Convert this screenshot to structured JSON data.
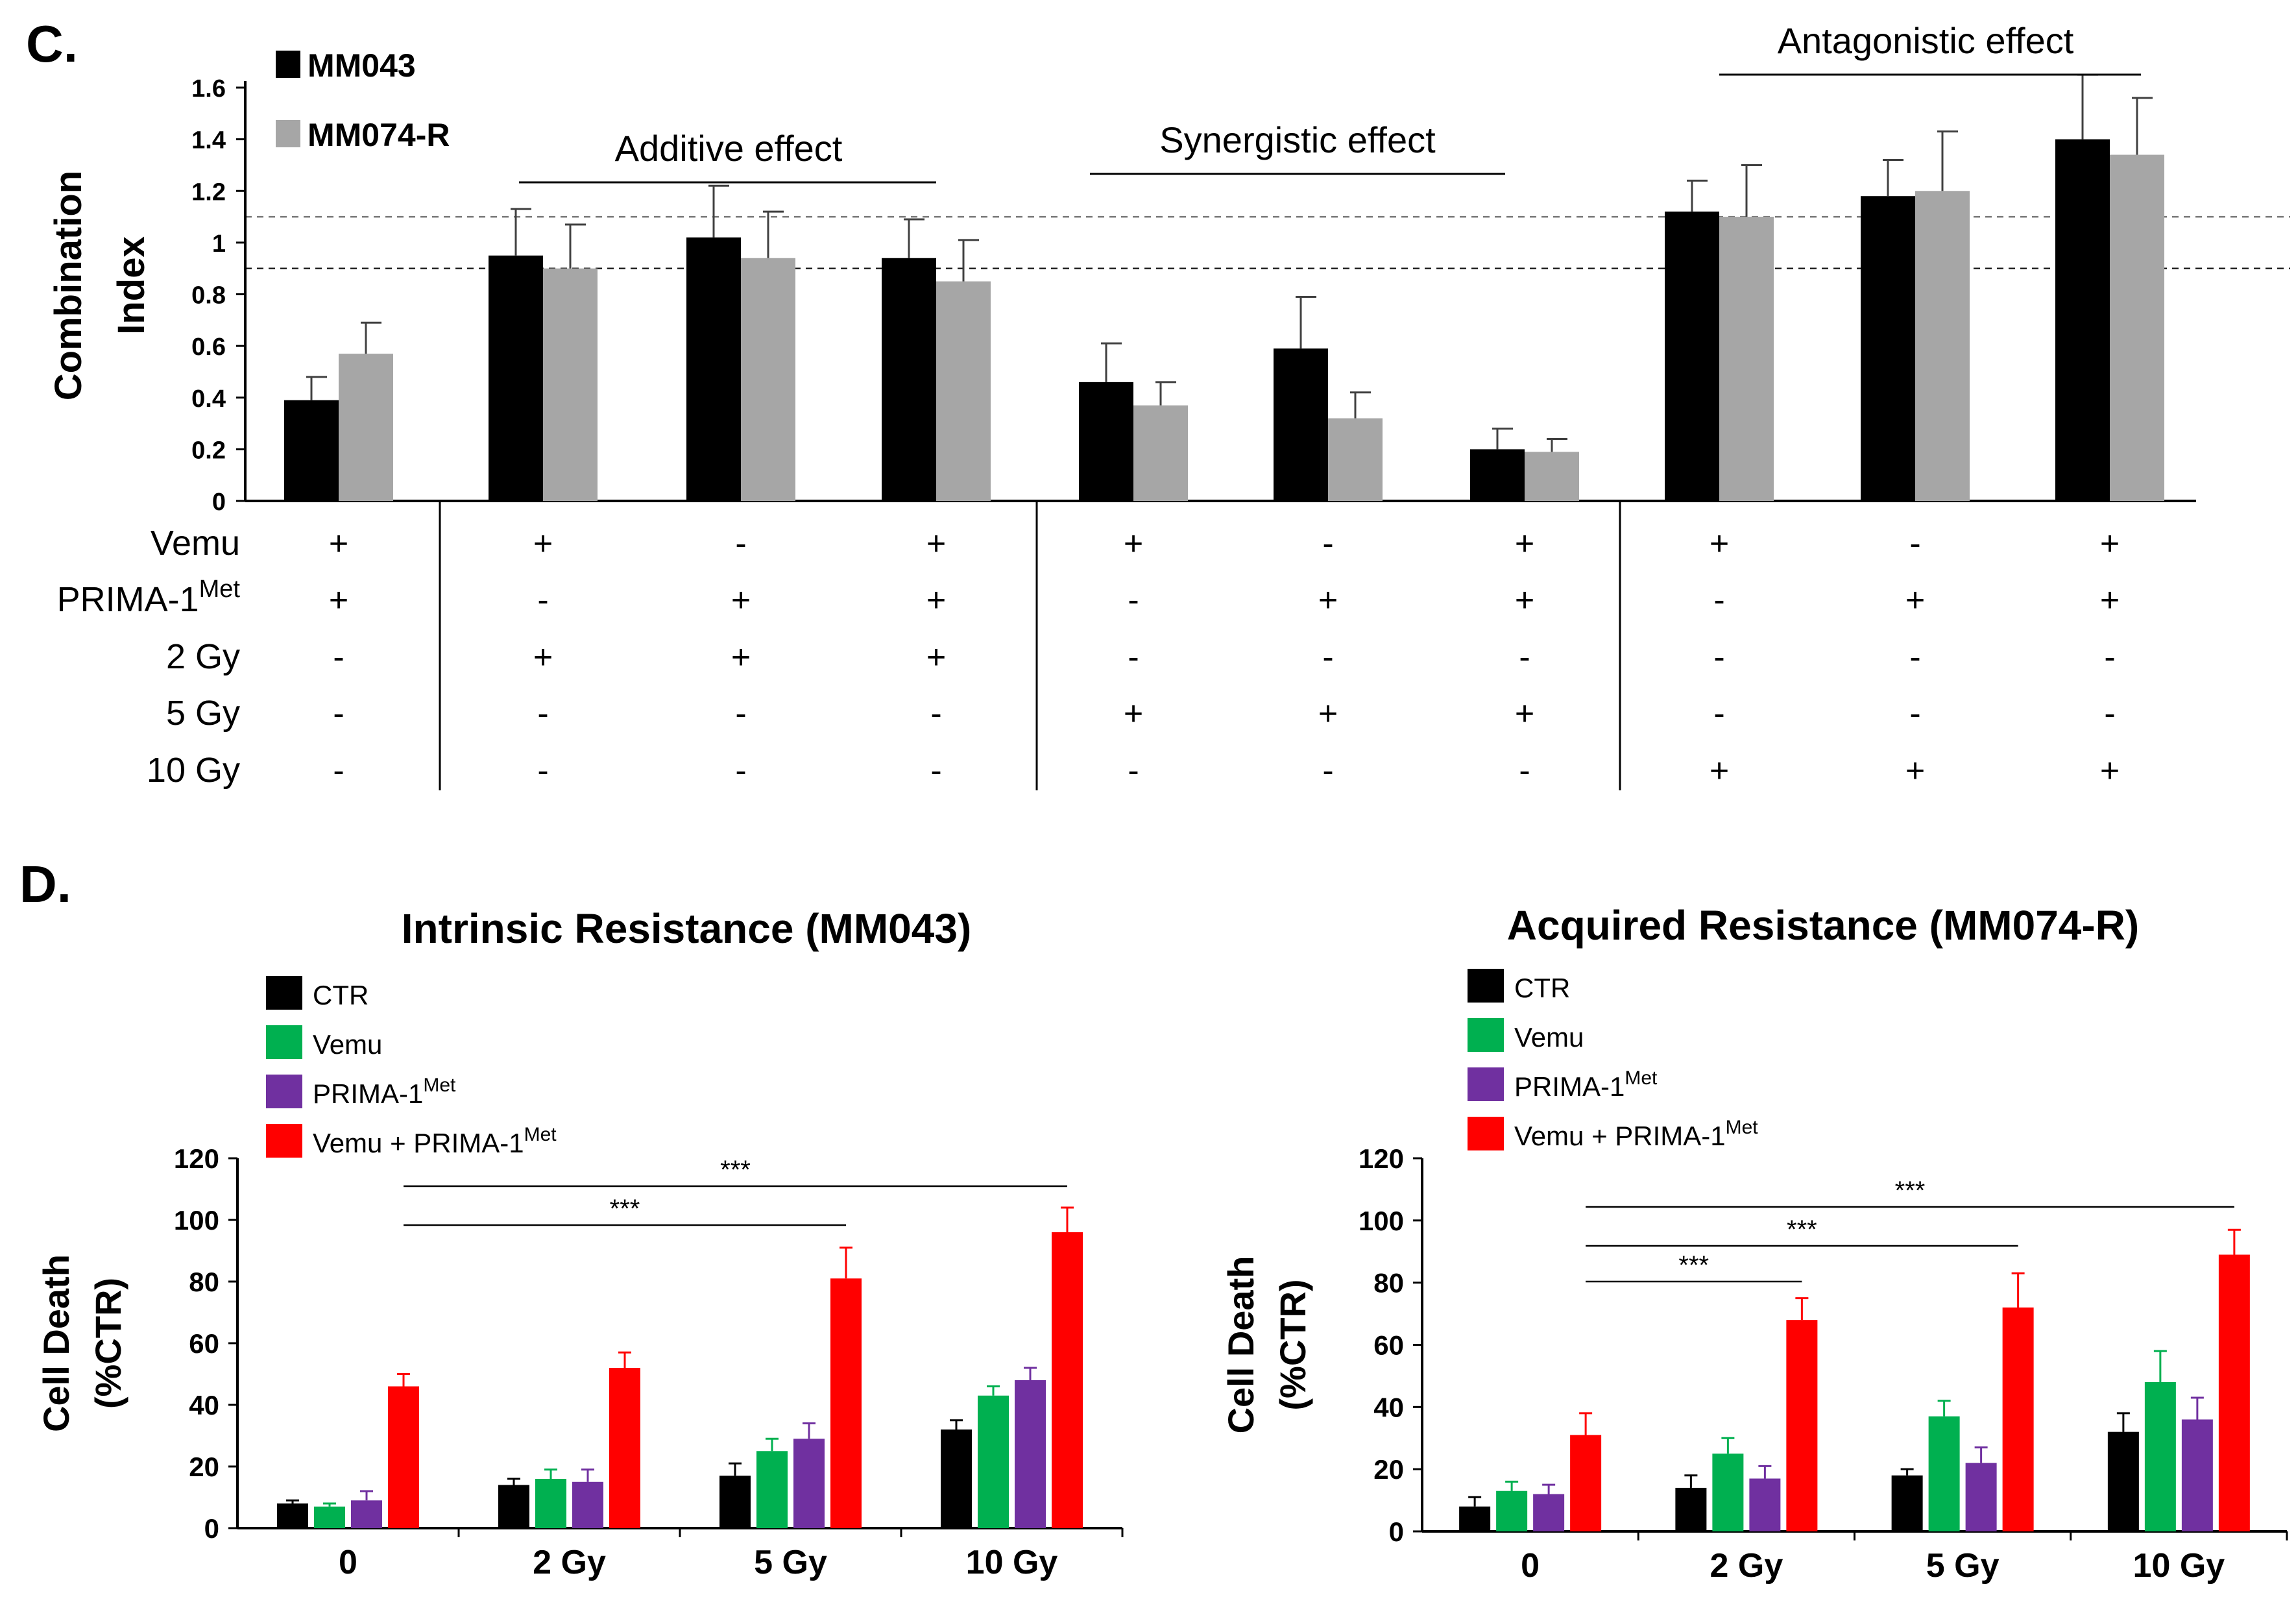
{
  "chart_data": [
    {
      "panel": "C.",
      "type": "bar",
      "ylabel_line1": "Combination",
      "ylabel_line2": "Index",
      "ylim": [
        0,
        1.6
      ],
      "yticks": [
        "0",
        "0.2",
        "0.4",
        "0.6",
        "0.8",
        "1",
        "1.2",
        "1.4",
        "1.6"
      ],
      "ytick_values": [
        0,
        0.2,
        0.4,
        0.6,
        0.8,
        1,
        1.2,
        1.4,
        1.6
      ],
      "reference_lines": [
        0.9,
        1.1
      ],
      "series": [
        {
          "name": "MM043",
          "color": "#000000",
          "values": [
            0.39,
            0.95,
            1.02,
            0.94,
            0.46,
            0.59,
            0.2,
            1.12,
            1.18,
            1.4
          ],
          "errors": [
            0.09,
            0.18,
            0.2,
            0.15,
            0.15,
            0.2,
            0.08,
            0.12,
            0.14,
            0.25
          ]
        },
        {
          "name": "MM074-R",
          "color": "#a6a6a6",
          "values": [
            0.57,
            0.9,
            0.94,
            0.85,
            0.37,
            0.32,
            0.19,
            1.1,
            1.2,
            1.34
          ],
          "errors": [
            0.12,
            0.17,
            0.18,
            0.16,
            0.09,
            0.1,
            0.05,
            0.2,
            0.23,
            0.22
          ]
        }
      ],
      "annotations": [
        "Additive effect",
        "Synergistic effect",
        "Antagonistic effect"
      ],
      "treatment_rows": [
        {
          "label": "Vemu",
          "sup": "",
          "signs": [
            "+",
            "+",
            "-",
            "+",
            "+",
            "-",
            "+",
            "+",
            "-",
            "+"
          ]
        },
        {
          "label": "PRIMA-1",
          "sup": "Met",
          "signs": [
            "+",
            "-",
            "+",
            "+",
            "-",
            "+",
            "+",
            "-",
            "+",
            "+"
          ]
        },
        {
          "label": "2 Gy",
          "sup": "",
          "signs": [
            "-",
            "+",
            "+",
            "+",
            "-",
            "-",
            "-",
            "-",
            "-",
            "-"
          ]
        },
        {
          "label": "5 Gy",
          "sup": "",
          "signs": [
            "-",
            "-",
            "-",
            "-",
            "+",
            "+",
            "+",
            "-",
            "-",
            "-"
          ]
        },
        {
          "label": "10 Gy",
          "sup": "",
          "signs": [
            "-",
            "-",
            "-",
            "-",
            "-",
            "-",
            "-",
            "+",
            "+",
            "+"
          ]
        }
      ]
    },
    {
      "panel": "D.",
      "type": "bar",
      "title": "Intrinsic Resistance (MM043)",
      "ylabel_line1": "Cell Death",
      "ylabel_line2": "(%CTR)",
      "ylim": [
        0,
        120
      ],
      "yticks": [
        "0",
        "20",
        "40",
        "60",
        "80",
        "100",
        "120"
      ],
      "ytick_values": [
        0,
        20,
        40,
        60,
        80,
        100,
        120
      ],
      "categories": [
        "0",
        "2 Gy",
        "5 Gy",
        "10 Gy"
      ],
      "series": [
        {
          "name": "CTR",
          "color": "#000000",
          "values": [
            8,
            14,
            17,
            32
          ],
          "errors": [
            1,
            2,
            4,
            3
          ]
        },
        {
          "name": "Vemu",
          "color": "#00b050",
          "values": [
            7,
            16,
            25,
            43
          ],
          "errors": [
            1,
            3,
            4,
            3
          ]
        },
        {
          "name": "PRIMA-1",
          "sup": "Met",
          "color": "#7030a0",
          "values": [
            9,
            15,
            29,
            48
          ],
          "errors": [
            3,
            4,
            5,
            4
          ]
        },
        {
          "name": "Vemu + PRIMA-1",
          "sup": "Met",
          "color": "#ff0000",
          "values": [
            46,
            52,
            81,
            96
          ],
          "errors": [
            4,
            5,
            10,
            8
          ]
        }
      ],
      "significance": [
        {
          "label": "***",
          "from": "0",
          "to": "5 Gy"
        },
        {
          "label": "***",
          "from": "0",
          "to": "10 Gy"
        }
      ]
    },
    {
      "panel": "",
      "type": "bar",
      "title": "Acquired  Resistance (MM074-R)",
      "ylabel_line1": "Cell Death",
      "ylabel_line2": "(%CTR)",
      "ylim": [
        0,
        120
      ],
      "yticks": [
        "0",
        "20",
        "40",
        "60",
        "80",
        "100",
        "120"
      ],
      "ytick_values": [
        0,
        20,
        40,
        60,
        80,
        100,
        120
      ],
      "categories": [
        "0",
        "2 Gy",
        "5 Gy",
        "10 Gy"
      ],
      "series": [
        {
          "name": "CTR",
          "color": "#000000",
          "values": [
            8,
            14,
            18,
            32
          ],
          "errors": [
            3,
            4,
            2,
            6
          ]
        },
        {
          "name": "Vemu",
          "color": "#00b050",
          "values": [
            13,
            25,
            37,
            48
          ],
          "errors": [
            3,
            5,
            5,
            10
          ]
        },
        {
          "name": "PRIMA-1",
          "sup": "Met",
          "color": "#7030a0",
          "values": [
            12,
            17,
            22,
            36
          ],
          "errors": [
            3,
            4,
            5,
            7
          ]
        },
        {
          "name": "Vemu + PRIMA-1",
          "sup": "Met",
          "color": "#ff0000",
          "values": [
            31,
            68,
            72,
            89
          ],
          "errors": [
            7,
            7,
            11,
            8
          ]
        }
      ],
      "significance": [
        {
          "label": "***",
          "from": "0",
          "to": "2 Gy"
        },
        {
          "label": "***",
          "from": "0",
          "to": "5 Gy"
        },
        {
          "label": "***",
          "from": "0",
          "to": "10 Gy"
        }
      ]
    }
  ]
}
